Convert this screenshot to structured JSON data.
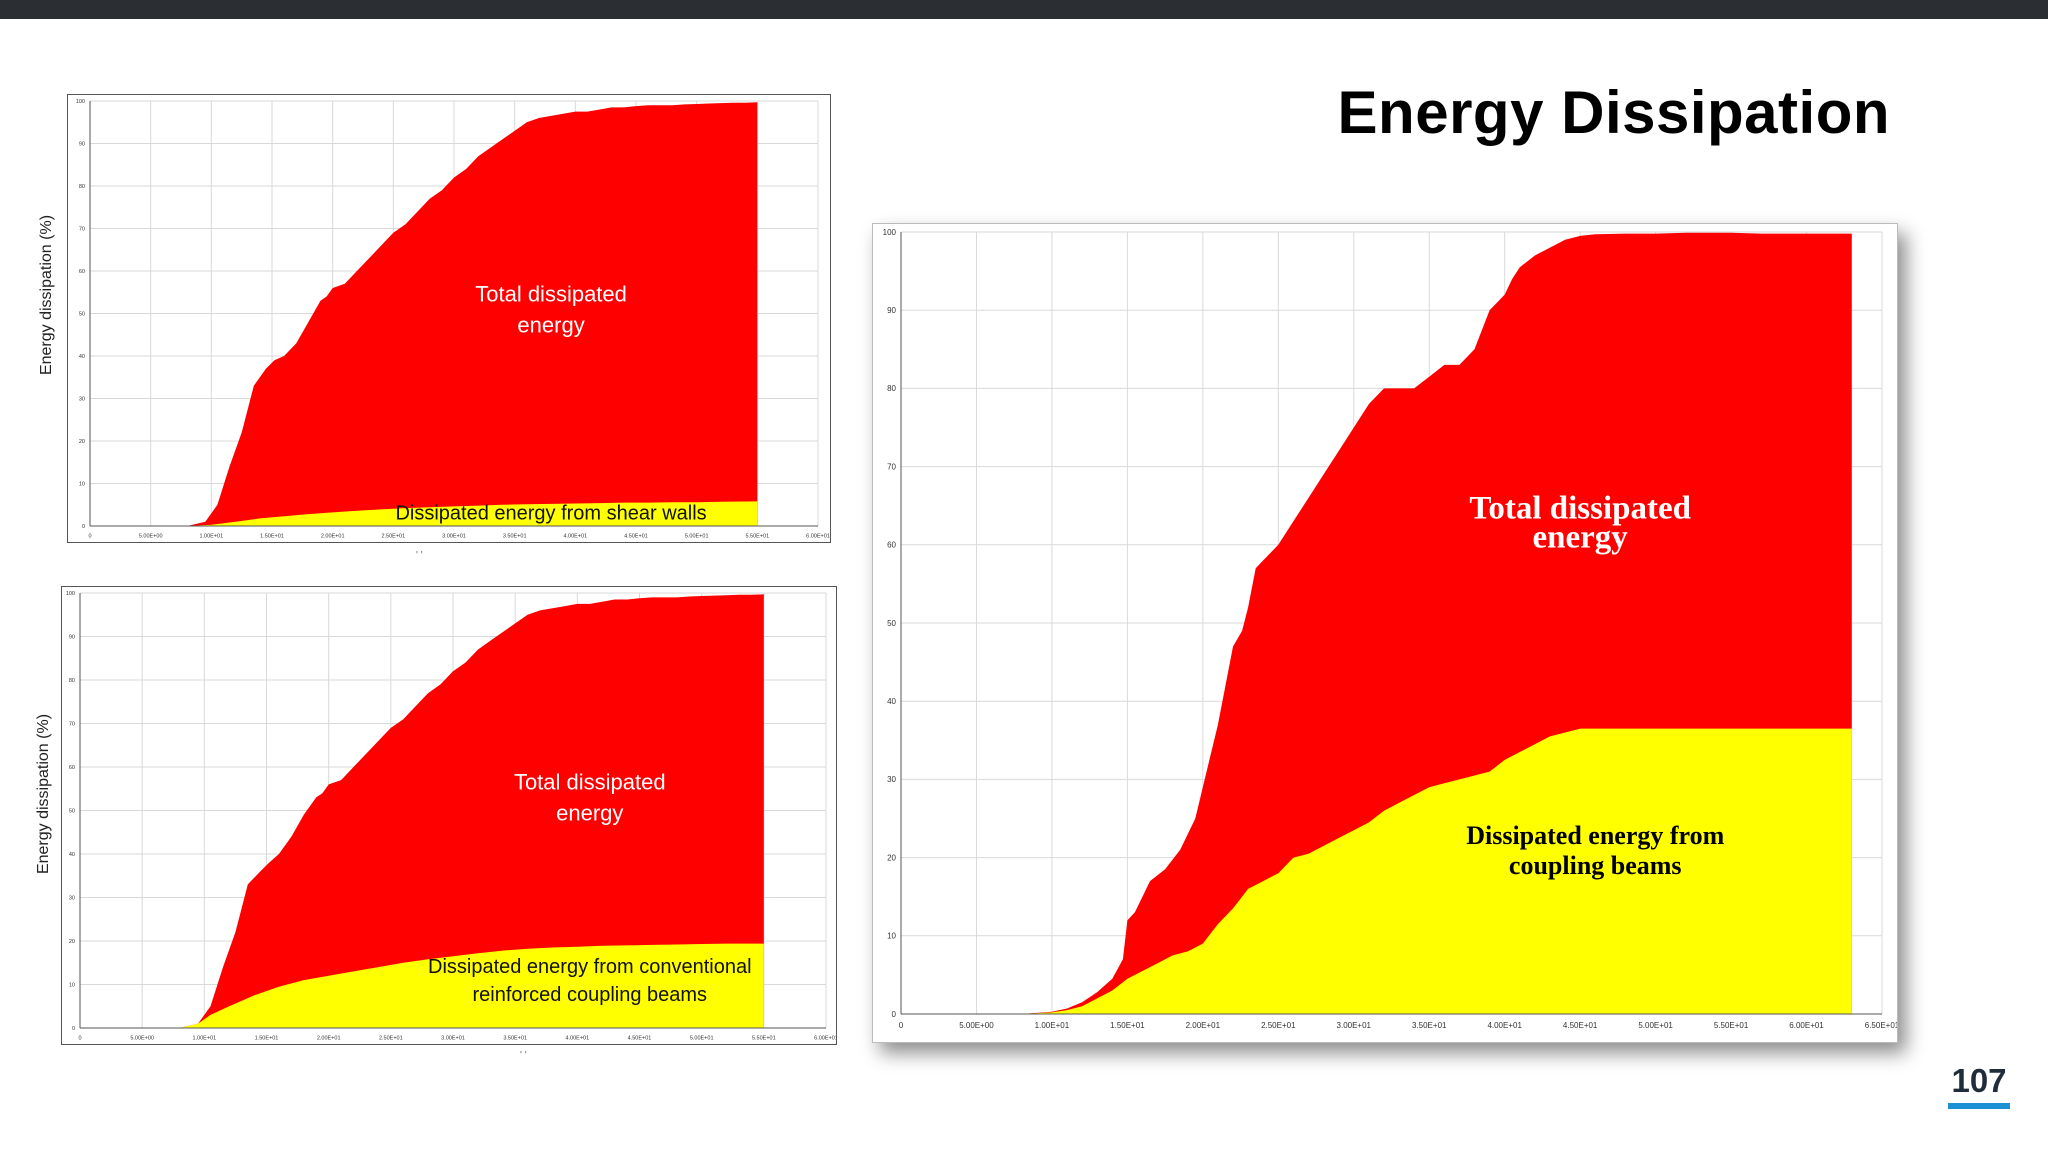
{
  "slide": {
    "title": "Energy Dissipation",
    "page_number": "107",
    "accent_color": "#1e90d6",
    "stray_marks": [
      "'   '",
      "'   '"
    ]
  },
  "chart_data": [
    {
      "type": "area",
      "ylabel": "Energy dissipation  (%)",
      "ylim": [
        0,
        100
      ],
      "xlim": [
        0,
        60
      ],
      "grid": true,
      "yticks": [
        "0",
        "10",
        "20",
        "30",
        "40",
        "50",
        "60",
        "70",
        "80",
        "90",
        "100"
      ],
      "xticks": [
        "0",
        "5.00E+00",
        "1.00E+01",
        "1.50E+01",
        "2.00E+01",
        "2.50E+01",
        "3.00E+01",
        "3.50E+01",
        "4.00E+01",
        "4.50E+01",
        "5.00E+01",
        "5.50E+01",
        "6.00E+01"
      ],
      "series": [
        {
          "color": "#ff0000",
          "x": [
            0,
            8,
            9.5,
            10.5,
            11.5,
            12.5,
            13.5,
            14.5,
            15.2,
            16,
            17,
            18,
            19,
            19.5,
            20,
            21,
            22,
            23,
            24,
            25,
            26,
            27,
            28,
            29,
            30,
            31,
            32,
            33,
            34,
            35,
            36,
            37,
            38,
            39,
            40,
            41,
            42,
            43,
            44,
            45,
            46,
            47,
            48,
            49,
            50,
            51,
            52,
            53,
            54,
            55
          ],
          "y": [
            0,
            0,
            1,
            5,
            14,
            22,
            33,
            37,
            39,
            40,
            43,
            48,
            53,
            54,
            56,
            57,
            60,
            63,
            66,
            69,
            71,
            74,
            77,
            79,
            82,
            84,
            87,
            89,
            91,
            93,
            95,
            96,
            96.5,
            97,
            97.5,
            97.5,
            98,
            98.5,
            98.5,
            98.8,
            99,
            99,
            99,
            99.2,
            99.3,
            99.4,
            99.5,
            99.6,
            99.6,
            99.7
          ]
        },
        {
          "color": "#ffff00",
          "x": [
            0,
            8,
            10,
            12,
            14,
            16,
            18,
            20,
            22,
            24,
            26,
            28,
            30,
            32,
            34,
            36,
            38,
            40,
            42,
            44,
            46,
            48,
            50,
            52,
            55
          ],
          "y": [
            0,
            0,
            0.3,
            1,
            1.8,
            2.3,
            2.8,
            3.2,
            3.6,
            3.9,
            4.2,
            4.4,
            4.6,
            4.8,
            5,
            5.1,
            5.2,
            5.3,
            5.4,
            5.5,
            5.5,
            5.6,
            5.6,
            5.7,
            5.8
          ]
        }
      ],
      "annotations": [
        [
          "Total dissipated",
          "energy"
        ],
        [
          "Dissipated energy from shear walls"
        ]
      ]
    },
    {
      "type": "area",
      "ylabel": "Energy dissipation  (%)",
      "ylim": [
        0,
        100
      ],
      "xlim": [
        0,
        60
      ],
      "grid": true,
      "yticks": [
        "0",
        "10",
        "20",
        "30",
        "40",
        "50",
        "60",
        "70",
        "80",
        "90",
        "100"
      ],
      "xticks": [
        "0",
        "5.00E+00",
        "1.00E+01",
        "1.50E+01",
        "2.00E+01",
        "2.50E+01",
        "3.00E+01",
        "3.50E+01",
        "4.00E+01",
        "4.50E+01",
        "5.00E+01",
        "5.50E+01",
        "6.00E+01"
      ],
      "series": [
        {
          "color": "#ff0000",
          "x": [
            0,
            8,
            9.5,
            10.5,
            11.5,
            12.5,
            13.5,
            14.5,
            15.2,
            16,
            17,
            18,
            19,
            19.5,
            20,
            21,
            22,
            23,
            24,
            25,
            26,
            27,
            28,
            29,
            30,
            31,
            32,
            33,
            34,
            35,
            36,
            37,
            38,
            39,
            40,
            41,
            42,
            43,
            44,
            45,
            46,
            47,
            48,
            49,
            50,
            51,
            52,
            53,
            54,
            55
          ],
          "y": [
            0,
            0,
            1,
            5,
            14,
            22,
            33,
            36,
            38,
            40,
            44,
            49,
            53,
            54,
            56,
            57,
            60,
            63,
            66,
            69,
            71,
            74,
            77,
            79,
            82,
            84,
            87,
            89,
            91,
            93,
            95,
            96,
            96.5,
            97,
            97.5,
            97.5,
            98,
            98.5,
            98.5,
            98.8,
            99,
            99,
            99,
            99.2,
            99.3,
            99.4,
            99.5,
            99.6,
            99.6,
            99.7
          ]
        },
        {
          "color": "#ffff00",
          "x": [
            0,
            8,
            9.5,
            10.5,
            12,
            14,
            16,
            18,
            20,
            22,
            24,
            26,
            28,
            30,
            32,
            34,
            36,
            38,
            40,
            42,
            44,
            46,
            48,
            50,
            52,
            55
          ],
          "y": [
            0,
            0,
            1,
            3,
            5,
            7.5,
            9.5,
            11,
            12,
            13,
            14,
            15,
            15.8,
            16.5,
            17.2,
            17.8,
            18.2,
            18.5,
            18.7,
            18.9,
            19,
            19.1,
            19.2,
            19.3,
            19.4,
            19.4
          ]
        }
      ],
      "annotations": [
        [
          "Total dissipated",
          "energy"
        ],
        [
          "Dissipated energy from conventional",
          "reinforced coupling beams"
        ]
      ]
    },
    {
      "type": "area",
      "ylim": [
        0,
        100
      ],
      "xlim": [
        0,
        65
      ],
      "grid": true,
      "yticks": [
        "0",
        "10",
        "20",
        "30",
        "40",
        "50",
        "60",
        "70",
        "80",
        "90",
        "100"
      ],
      "xticks": [
        "0",
        "5.00E+00",
        "1.00E+01",
        "1.50E+01",
        "2.00E+01",
        "2.50E+01",
        "3.00E+01",
        "3.50E+01",
        "4.00E+01",
        "4.50E+01",
        "5.00E+01",
        "5.50E+01",
        "6.00E+01",
        "6.50E+01"
      ],
      "series": [
        {
          "color": "#ff0000",
          "x": [
            0,
            8,
            10,
            11,
            12,
            13,
            14,
            14.7,
            15,
            15.5,
            16.5,
            17.5,
            18.5,
            19.5,
            20,
            21,
            22,
            22.6,
            23,
            23.5,
            24,
            25,
            26,
            27,
            28,
            29,
            30,
            31,
            32,
            33,
            34,
            35,
            36,
            37,
            38,
            39,
            40,
            40.5,
            41,
            42,
            43,
            44,
            45,
            46,
            48,
            50,
            52,
            55,
            57,
            60,
            63
          ],
          "y": [
            0,
            0,
            0.3,
            0.7,
            1.5,
            2.8,
            4.5,
            7,
            12,
            13,
            17,
            18.5,
            21,
            25,
            29,
            37,
            47,
            49,
            52,
            57,
            58,
            60,
            63,
            66,
            69,
            72,
            75,
            78,
            80,
            80,
            80,
            81.5,
            83,
            83,
            85,
            90,
            92,
            94,
            95.5,
            97,
            98,
            99,
            99.5,
            99.7,
            99.8,
            99.8,
            99.9,
            99.9,
            99.8,
            99.8,
            99.8
          ]
        },
        {
          "color": "#ffff00",
          "x": [
            0,
            8,
            10,
            11,
            12,
            13,
            14,
            15,
            16,
            17,
            18,
            19,
            20,
            21,
            22,
            23,
            24,
            25,
            26,
            27,
            28,
            29,
            30,
            31,
            32,
            33,
            34,
            35,
            36,
            37,
            38,
            39,
            40,
            41,
            42,
            43,
            44,
            45,
            46,
            48,
            50,
            52,
            55,
            58,
            60,
            63
          ],
          "y": [
            0,
            0,
            0.2,
            0.5,
            1,
            2,
            3,
            4.5,
            5.5,
            6.5,
            7.5,
            8,
            9,
            11.5,
            13.5,
            16,
            17,
            18,
            20,
            20.5,
            21.5,
            22.5,
            23.5,
            24.5,
            26,
            27,
            28,
            29,
            29.5,
            30,
            30.5,
            31,
            32.5,
            33.5,
            34.5,
            35.5,
            36,
            36.5,
            36.5,
            36.5,
            36.5,
            36.5,
            36.5,
            36.5,
            36.5,
            36.5
          ]
        }
      ],
      "annotations": [
        [
          "Total dissipated",
          "energy"
        ],
        [
          "Dissipated energy from",
          "coupling beams"
        ]
      ]
    }
  ]
}
